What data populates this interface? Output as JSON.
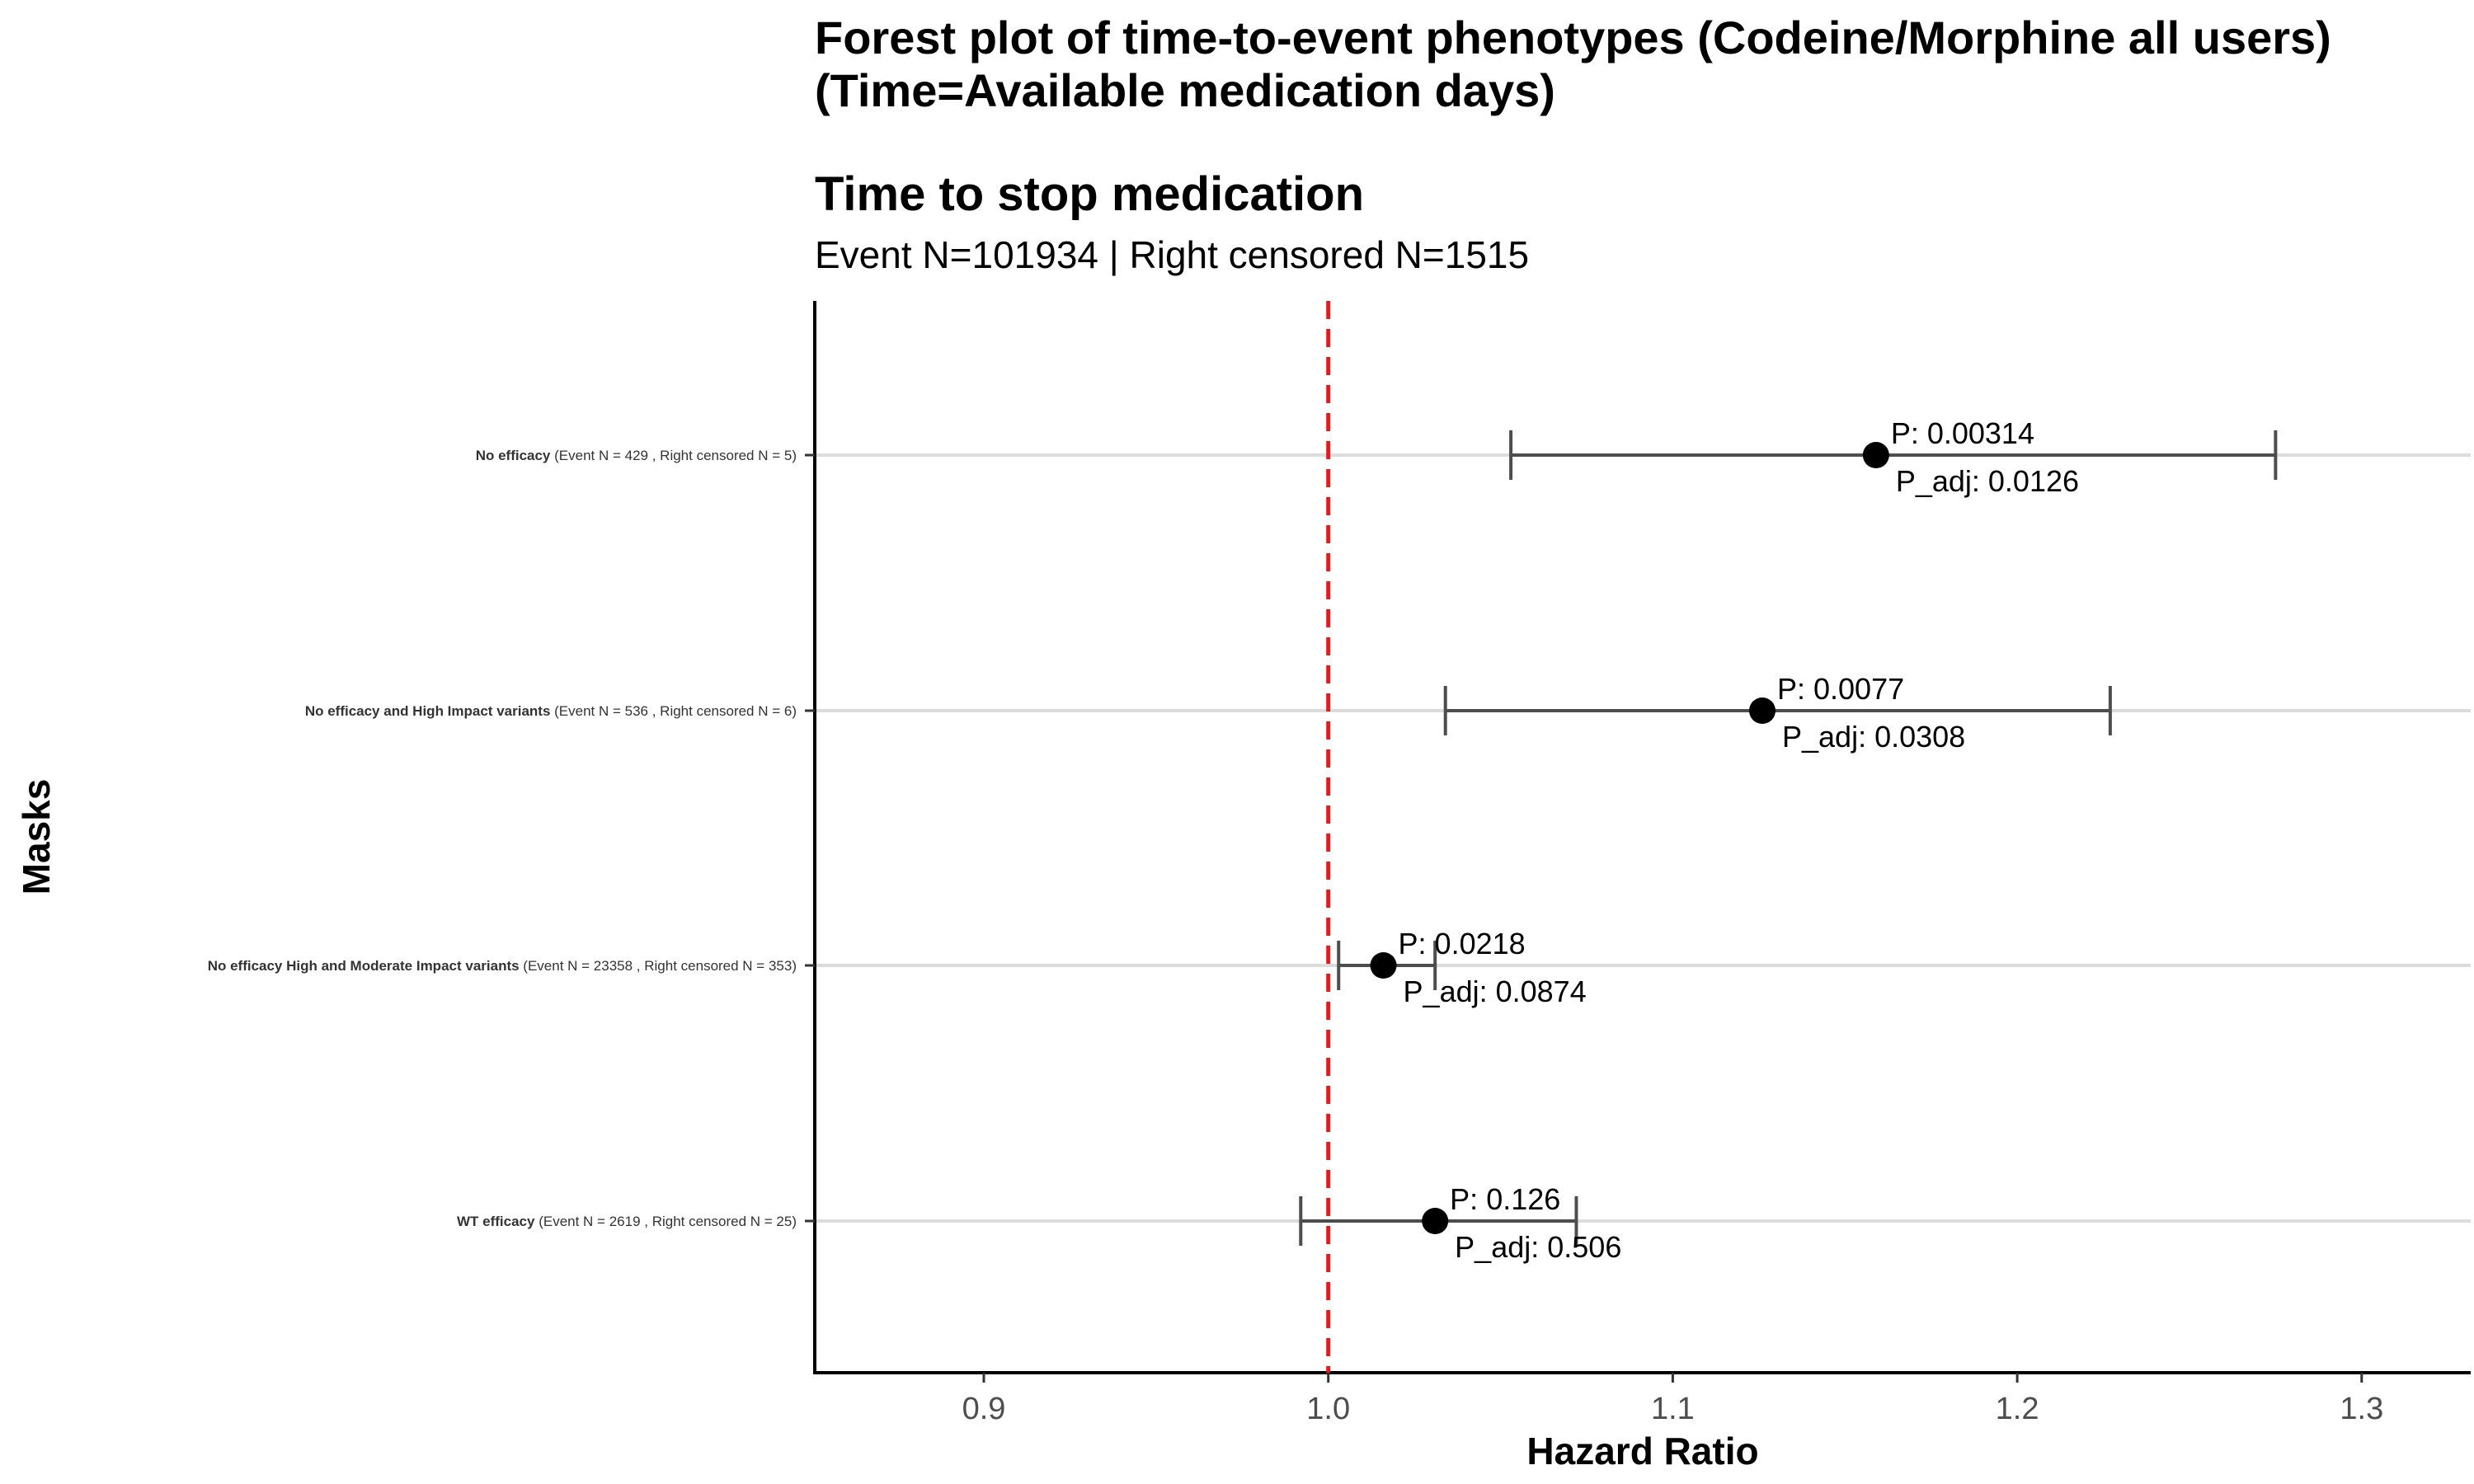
{
  "chart_data": {
    "type": "forest",
    "title": "Forest plot of time-to-event phenotypes (Codeine/Morphine all users)",
    "title_line2": "(Time=Available medication days)",
    "subtitle": "Time to stop medication",
    "caption": "Event N=101934 | Right censored N=1515",
    "xlabel": "Hazard Ratio",
    "ylabel": "Masks",
    "xlim": [
      0.85,
      1.33
    ],
    "xticks": [
      0.9,
      1.0,
      1.1,
      1.2,
      1.3
    ],
    "xtick_labels": [
      "0.9",
      "1.0",
      "1.1",
      "1.2",
      "1.3"
    ],
    "reference_line": 1.0,
    "reference_color": "#e41a1c",
    "point_color": "#000000",
    "errorbar_color": "#4d4d4d",
    "grid": "horizontal only",
    "rows": [
      {
        "mask": "No efficacy",
        "detail": "(Event N = 429 , Right censored N = 5)",
        "hr": 1.159,
        "ci_low": 1.053,
        "ci_high": 1.275,
        "p_label": "P: 0.00314",
        "padj_label": "P_adj: 0.0126"
      },
      {
        "mask": "No efficacy and High Impact variants",
        "detail": "(Event N = 536 , Right censored N = 6)",
        "hr": 1.126,
        "ci_low": 1.034,
        "ci_high": 1.227,
        "p_label": "P: 0.0077",
        "padj_label": "P_adj: 0.0308"
      },
      {
        "mask": "No efficacy High and Moderate Impact variants",
        "detail": "(Event N = 23358 , Right censored N = 353)",
        "hr": 1.016,
        "ci_low": 1.003,
        "ci_high": 1.031,
        "p_label": "P: 0.0218",
        "padj_label": "P_adj: 0.0874"
      },
      {
        "mask": "WT efficacy",
        "detail": "(Event N = 2619 , Right censored N = 25)",
        "hr": 1.031,
        "ci_low": 0.992,
        "ci_high": 1.072,
        "p_label": "P: 0.126",
        "padj_label": "P_adj: 0.506"
      }
    ]
  }
}
